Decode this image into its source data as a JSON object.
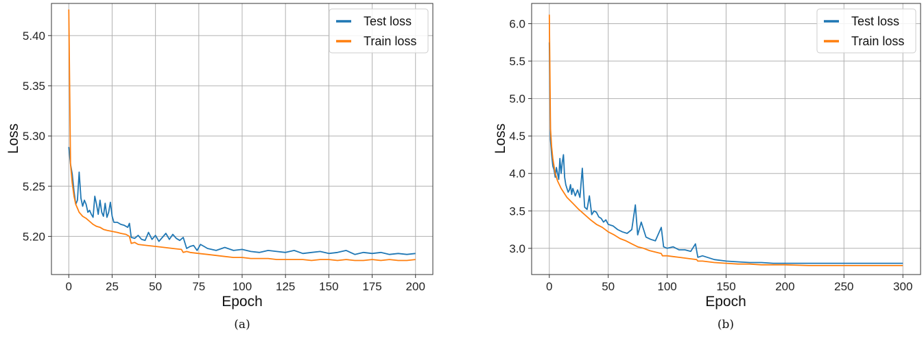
{
  "chart_data": [
    {
      "type": "line",
      "caption": "(a)",
      "xlabel": "Epoch",
      "ylabel": "Loss",
      "xlim": [
        -10,
        210
      ],
      "ylim": [
        5.162,
        5.432
      ],
      "xticks": [
        0,
        25,
        50,
        75,
        100,
        125,
        150,
        175,
        200
      ],
      "yticks": [
        5.2,
        5.25,
        5.3,
        5.35,
        5.4
      ],
      "ytick_labels": [
        "5.20",
        "5.25",
        "5.30",
        "5.35",
        "5.40"
      ],
      "grid": true,
      "legend_position": "top-right",
      "series": [
        {
          "name": "Test loss",
          "color": "#1f77b4",
          "x": [
            0,
            1,
            2,
            3,
            4,
            5,
            6,
            7,
            8,
            9,
            10,
            11,
            12,
            13,
            14,
            15,
            16,
            17,
            18,
            19,
            20,
            21,
            22,
            23,
            24,
            25,
            26,
            28,
            30,
            32,
            34,
            35,
            36,
            38,
            40,
            42,
            44,
            46,
            48,
            50,
            52,
            54,
            56,
            58,
            60,
            62,
            64,
            66,
            68,
            70,
            72,
            74,
            76,
            78,
            80,
            85,
            90,
            95,
            100,
            105,
            110,
            115,
            120,
            125,
            130,
            135,
            140,
            145,
            150,
            155,
            160,
            165,
            170,
            175,
            180,
            185,
            190,
            195,
            200
          ],
          "y": [
            5.289,
            5.272,
            5.262,
            5.245,
            5.232,
            5.236,
            5.264,
            5.238,
            5.23,
            5.236,
            5.232,
            5.224,
            5.226,
            5.222,
            5.219,
            5.24,
            5.232,
            5.222,
            5.236,
            5.224,
            5.22,
            5.233,
            5.219,
            5.224,
            5.234,
            5.22,
            5.214,
            5.214,
            5.212,
            5.211,
            5.209,
            5.213,
            5.199,
            5.198,
            5.201,
            5.197,
            5.196,
            5.204,
            5.197,
            5.201,
            5.195,
            5.199,
            5.203,
            5.197,
            5.202,
            5.198,
            5.196,
            5.199,
            5.188,
            5.19,
            5.191,
            5.186,
            5.192,
            5.19,
            5.188,
            5.186,
            5.189,
            5.186,
            5.187,
            5.185,
            5.184,
            5.186,
            5.185,
            5.184,
            5.186,
            5.183,
            5.184,
            5.185,
            5.183,
            5.184,
            5.186,
            5.182,
            5.184,
            5.183,
            5.184,
            5.182,
            5.183,
            5.182,
            5.183
          ]
        },
        {
          "name": "Train loss",
          "color": "#ff7f0e",
          "x": [
            0,
            1,
            2,
            3,
            4,
            5,
            6,
            8,
            10,
            12,
            14,
            16,
            18,
            20,
            22,
            25,
            28,
            30,
            33,
            35,
            36,
            38,
            40,
            45,
            50,
            55,
            60,
            65,
            66,
            68,
            70,
            75,
            80,
            85,
            90,
            95,
            100,
            105,
            110,
            115,
            120,
            125,
            130,
            135,
            140,
            145,
            150,
            155,
            160,
            165,
            170,
            175,
            180,
            185,
            190,
            195,
            200
          ],
          "y": [
            5.426,
            5.272,
            5.253,
            5.24,
            5.232,
            5.228,
            5.224,
            5.22,
            5.218,
            5.215,
            5.212,
            5.21,
            5.209,
            5.207,
            5.206,
            5.205,
            5.204,
            5.203,
            5.202,
            5.2,
            5.193,
            5.194,
            5.192,
            5.191,
            5.19,
            5.189,
            5.188,
            5.187,
            5.184,
            5.185,
            5.184,
            5.183,
            5.182,
            5.181,
            5.18,
            5.179,
            5.179,
            5.178,
            5.178,
            5.178,
            5.177,
            5.177,
            5.177,
            5.177,
            5.176,
            5.177,
            5.177,
            5.176,
            5.177,
            5.176,
            5.176,
            5.177,
            5.176,
            5.177,
            5.176,
            5.176,
            5.177
          ]
        }
      ]
    },
    {
      "type": "line",
      "caption": "(b)",
      "xlabel": "Epoch",
      "ylabel": "Loss",
      "xlim": [
        -15,
        315
      ],
      "ylim": [
        2.65,
        6.27
      ],
      "xticks": [
        0,
        50,
        100,
        150,
        200,
        250,
        300
      ],
      "yticks": [
        3.0,
        3.5,
        4.0,
        4.5,
        5.0,
        5.5,
        6.0
      ],
      "ytick_labels": [
        "3.0",
        "3.5",
        "4.0",
        "4.5",
        "5.0",
        "5.5",
        "6.0"
      ],
      "grid": true,
      "legend_position": "top-right",
      "series": [
        {
          "name": "Test loss",
          "color": "#1f77b4",
          "x": [
            0,
            1,
            2,
            3,
            4,
            5,
            6,
            7,
            8,
            9,
            10,
            11,
            12,
            13,
            14,
            15,
            16,
            17,
            18,
            19,
            20,
            22,
            24,
            26,
            28,
            29,
            30,
            32,
            34,
            36,
            38,
            40,
            42,
            44,
            46,
            48,
            50,
            54,
            58,
            62,
            66,
            70,
            73,
            75,
            78,
            82,
            86,
            90,
            95,
            97,
            100,
            105,
            110,
            115,
            120,
            124,
            126,
            130,
            140,
            150,
            160,
            170,
            180,
            190,
            200,
            220,
            240,
            260,
            280,
            300
          ],
          "y": [
            5.75,
            4.45,
            4.25,
            4.1,
            4.05,
            3.95,
            4.08,
            4.0,
            3.92,
            4.2,
            4.0,
            4.15,
            4.25,
            3.95,
            3.85,
            3.8,
            3.75,
            3.78,
            3.85,
            3.72,
            3.8,
            3.7,
            3.78,
            3.68,
            4.07,
            3.8,
            3.55,
            3.52,
            3.7,
            3.45,
            3.5,
            3.48,
            3.42,
            3.4,
            3.35,
            3.38,
            3.32,
            3.3,
            3.25,
            3.22,
            3.2,
            3.25,
            3.58,
            3.18,
            3.35,
            3.15,
            3.12,
            3.1,
            3.28,
            3.02,
            3.0,
            3.02,
            2.98,
            2.98,
            2.96,
            3.06,
            2.88,
            2.9,
            2.85,
            2.83,
            2.82,
            2.81,
            2.81,
            2.8,
            2.8,
            2.8,
            2.8,
            2.8,
            2.8,
            2.8
          ]
        },
        {
          "name": "Train loss",
          "color": "#ff7f0e",
          "x": [
            0,
            1,
            2,
            3,
            5,
            7,
            10,
            15,
            20,
            25,
            30,
            35,
            40,
            45,
            50,
            55,
            60,
            65,
            70,
            75,
            80,
            85,
            90,
            95,
            96,
            100,
            105,
            110,
            115,
            120,
            125,
            126,
            130,
            140,
            150,
            160,
            170,
            180,
            190,
            200,
            220,
            240,
            260,
            280,
            300
          ],
          "y": [
            6.12,
            4.6,
            4.35,
            4.2,
            4.0,
            3.9,
            3.8,
            3.68,
            3.6,
            3.52,
            3.45,
            3.38,
            3.32,
            3.28,
            3.22,
            3.18,
            3.13,
            3.1,
            3.06,
            3.02,
            3.0,
            2.97,
            2.95,
            2.93,
            2.9,
            2.9,
            2.89,
            2.88,
            2.87,
            2.86,
            2.85,
            2.83,
            2.83,
            2.81,
            2.8,
            2.79,
            2.79,
            2.78,
            2.78,
            2.78,
            2.77,
            2.77,
            2.77,
            2.77,
            2.77
          ]
        }
      ]
    }
  ]
}
